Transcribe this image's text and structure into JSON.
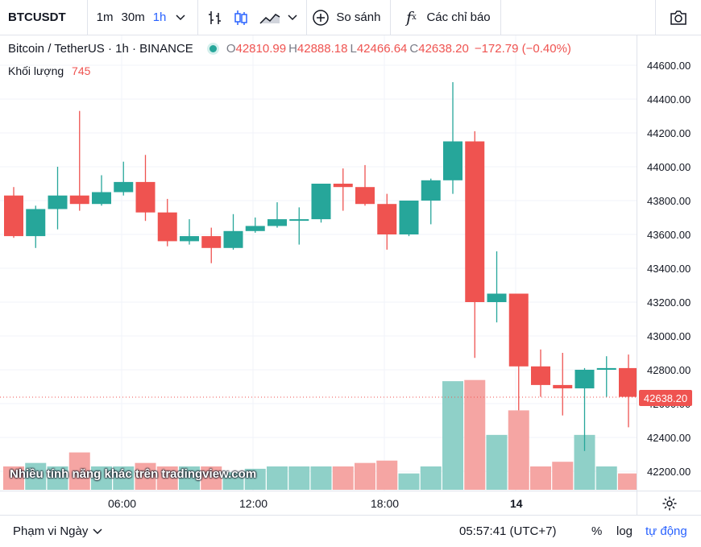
{
  "toolbar": {
    "symbol": "BTCUSDT",
    "timeframes": [
      "1m",
      "30m",
      "1h"
    ],
    "active_timeframe": "1h",
    "compare_label": "So sánh",
    "indicators_label": "Các chỉ báo",
    "icons": [
      "chevron-down-icon",
      "bar-chart-icon",
      "candlestick-icon",
      "area-chart-icon",
      "plus-circle-icon",
      "fx-icon",
      "camera-icon"
    ]
  },
  "legend": {
    "title": "Bitcoin / TetherUS · 1h · BINANCE",
    "open_label": "O",
    "open": "42810.99",
    "high_label": "H",
    "high": "42888.18",
    "low_label": "L",
    "low": "42466.64",
    "close_label": "C",
    "close": "42638.20",
    "change": "−172.79 (−0.40%)",
    "volume_label": "Khối lượng",
    "volume_value": "745"
  },
  "watermark": "Nhiều tính năng khác trên tradingview.com",
  "current_price": "42638.20",
  "xaxis_labels": [
    "06:00",
    "12:00",
    "18:00",
    "14"
  ],
  "bottom": {
    "range_label": "Phạm vi Ngày",
    "time": "05:57:41 (UTC+7)",
    "percent": "%",
    "log": "log",
    "auto": "tự động"
  },
  "colors": {
    "up": "#26a69a",
    "down": "#ef5350",
    "up_vol": "#8fd0c8",
    "down_vol": "#f5a5a3",
    "accent": "#2962ff"
  },
  "chart_data": {
    "type": "candlestick",
    "yticks": [
      44600,
      44400,
      44200,
      44000,
      43800,
      43600,
      43400,
      43200,
      43000,
      42800,
      42600,
      42400,
      42200
    ],
    "ylim": [
      42100,
      44700
    ],
    "candles": [
      {
        "o": 43830,
        "h": 43880,
        "l": 43580,
        "c": 43590
      },
      {
        "o": 43590,
        "h": 43770,
        "l": 43520,
        "c": 43750
      },
      {
        "o": 43750,
        "h": 44000,
        "l": 43630,
        "c": 43830
      },
      {
        "o": 43830,
        "h": 44330,
        "l": 43740,
        "c": 43780
      },
      {
        "o": 43780,
        "h": 43950,
        "l": 43770,
        "c": 43850
      },
      {
        "o": 43850,
        "h": 44030,
        "l": 43830,
        "c": 43910
      },
      {
        "o": 43910,
        "h": 44070,
        "l": 43680,
        "c": 43730
      },
      {
        "o": 43730,
        "h": 43810,
        "l": 43530,
        "c": 43560
      },
      {
        "o": 43560,
        "h": 43690,
        "l": 43540,
        "c": 43590
      },
      {
        "o": 43590,
        "h": 43640,
        "l": 43430,
        "c": 43520
      },
      {
        "o": 43520,
        "h": 43720,
        "l": 43510,
        "c": 43620
      },
      {
        "o": 43620,
        "h": 43700,
        "l": 43610,
        "c": 43650
      },
      {
        "o": 43650,
        "h": 43790,
        "l": 43640,
        "c": 43690
      },
      {
        "o": 43690,
        "h": 43760,
        "l": 43540,
        "c": 43690
      },
      {
        "o": 43690,
        "h": 43900,
        "l": 43670,
        "c": 43900
      },
      {
        "o": 43900,
        "h": 43990,
        "l": 43740,
        "c": 43880
      },
      {
        "o": 43880,
        "h": 44010,
        "l": 43770,
        "c": 43780
      },
      {
        "o": 43780,
        "h": 43840,
        "l": 43510,
        "c": 43600
      },
      {
        "o": 43600,
        "h": 43800,
        "l": 43590,
        "c": 43800
      },
      {
        "o": 43800,
        "h": 43930,
        "l": 43660,
        "c": 43920
      },
      {
        "o": 43920,
        "h": 44500,
        "l": 43840,
        "c": 44150
      },
      {
        "o": 44150,
        "h": 44210,
        "l": 42870,
        "c": 43200
      },
      {
        "o": 43200,
        "h": 43500,
        "l": 43080,
        "c": 43250
      },
      {
        "o": 43250,
        "h": 43250,
        "l": 42560,
        "c": 42820
      },
      {
        "o": 42820,
        "h": 42920,
        "l": 42640,
        "c": 42710
      },
      {
        "o": 42710,
        "h": 42900,
        "l": 42530,
        "c": 42690
      },
      {
        "o": 42690,
        "h": 42810,
        "l": 42320,
        "c": 42800
      },
      {
        "o": 42800,
        "h": 42880,
        "l": 42640,
        "c": 42810
      },
      {
        "o": 42810,
        "h": 42890,
        "l": 42460,
        "c": 42640
      }
    ],
    "volumes": [
      0.2,
      0.23,
      0.2,
      0.32,
      0.2,
      0.2,
      0.23,
      0.2,
      0.2,
      0.2,
      0.15,
      0.18,
      0.2,
      0.2,
      0.2,
      0.2,
      0.23,
      0.25,
      0.14,
      0.2,
      0.93,
      0.94,
      0.47,
      0.68,
      0.2,
      0.24,
      0.47,
      0.2,
      0.14
    ]
  }
}
